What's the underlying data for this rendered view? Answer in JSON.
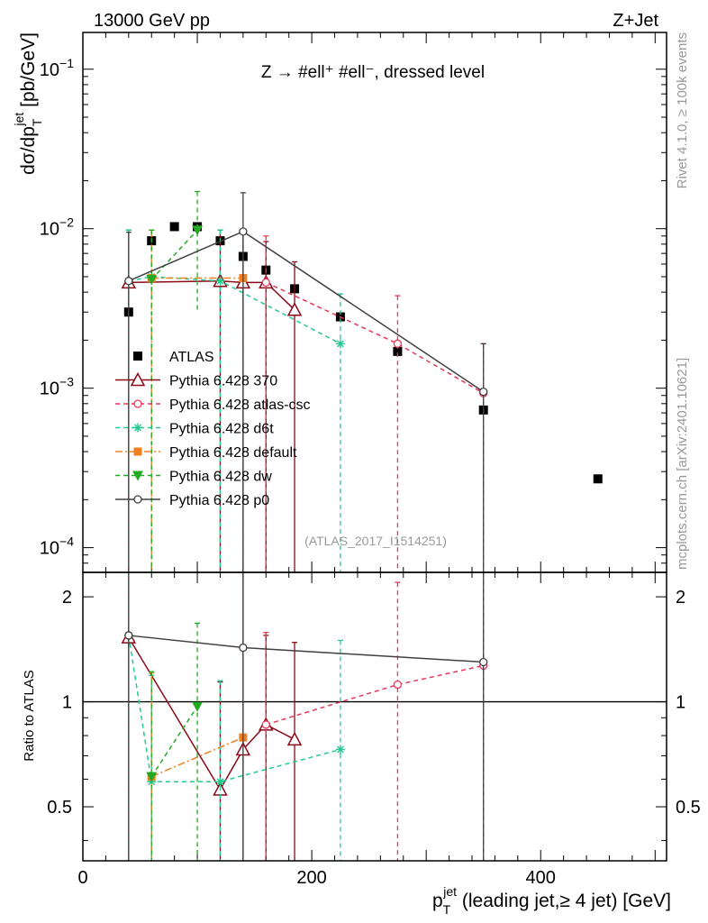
{
  "header": {
    "left": "13000 GeV pp",
    "right": "Z+Jet"
  },
  "annotation": "Z → #ell⁺ #ell⁻, dressed level",
  "analysis_id": "(ATLAS_2017_I1514251)",
  "side_labels": {
    "rivet": "Rivet 4.1.0, ≥ 100k events",
    "mcplots": "mcplots.cern.ch [arXiv:2401.10621]"
  },
  "colors": {
    "ATLAS": "#000000",
    "370": "#8b0a1a",
    "atlas-csc": "#e8365a",
    "d6t": "#22c990",
    "default": "#f08020",
    "dw": "#22aa22",
    "p0": "#404040"
  },
  "chart_data": {
    "type": "line",
    "title": "Z → #ell⁺ #ell⁻, dressed level",
    "xlabel": {
      "main": "p",
      "sub": "T",
      "sup": "jet",
      "rest": " (leading jet,≥ 4 jet) [GeV]"
    },
    "ylabel": {
      "pre": "dσ/dp",
      "sub": "T",
      "sup": "jet",
      "post": " [pb/GeV]"
    },
    "ratio_ylabel": "Ratio to ATLAS",
    "xlim": [
      0,
      510
    ],
    "ylim": [
      7e-05,
      0.17
    ],
    "ratio_ylim": [
      0.35,
      2.35
    ],
    "x_ticks": [
      {
        "v": 0,
        "label": "0"
      },
      {
        "v": 200,
        "label": "200"
      },
      {
        "v": 400,
        "label": "400"
      }
    ],
    "y_ticks": [
      {
        "exp": -4,
        "base": "10",
        "sup": "−4"
      },
      {
        "exp": -3,
        "base": "10",
        "sup": "−3"
      },
      {
        "exp": -2,
        "base": "10",
        "sup": "−2"
      },
      {
        "exp": -1,
        "base": "10",
        "sup": "−1"
      }
    ],
    "ratio_ticks": [
      {
        "v": 0.5,
        "label": "0.5"
      },
      {
        "v": 1,
        "label": "1"
      },
      {
        "v": 2,
        "label": "2"
      }
    ],
    "legend": [
      {
        "key": "ATLAS",
        "label": "ATLAS"
      },
      {
        "key": "370",
        "label": "Pythia 6.428 370"
      },
      {
        "key": "atlas-csc",
        "label": "Pythia 6.428 atlas-csc"
      },
      {
        "key": "d6t",
        "label": "Pythia 6.428 d6t"
      },
      {
        "key": "default",
        "label": "Pythia 6.428 default"
      },
      {
        "key": "dw",
        "label": "Pythia 6.428 dw"
      },
      {
        "key": "p0",
        "label": "Pythia 6.428 p0"
      }
    ],
    "data": {
      "name": "ATLAS",
      "x": [
        40,
        60,
        80,
        100,
        120,
        140,
        160,
        185,
        225,
        275,
        350,
        450
      ],
      "y": [
        0.003,
        0.0084,
        0.0103,
        0.0103,
        0.0084,
        0.0067,
        0.0055,
        0.0042,
        0.0028,
        0.0017,
        0.00073,
        0.00027
      ]
    },
    "series": [
      {
        "key": "370",
        "name": "Pythia 6.428 370",
        "marker": "triangle-open",
        "dash": "",
        "x": [
          40,
          120,
          140,
          160,
          185
        ],
        "y": [
          0.0046,
          0.0047,
          0.0046,
          0.0046,
          0.0031
        ],
        "err_hi": [
          0.0098,
          0.0098,
          0.0098,
          0.0083,
          0.0062
        ],
        "err_lo": [
          0,
          0,
          0,
          0,
          0
        ],
        "ratio": [
          1.53,
          0.56,
          0.73,
          0.86,
          0.78
        ],
        "ratio_err_hi": [
          2.35,
          1.14,
          2.35,
          1.55,
          1.48
        ],
        "ratio_err_lo": [
          0.35,
          0.35,
          0.35,
          0.35,
          0.35
        ]
      },
      {
        "key": "atlas-csc",
        "name": "Pythia 6.428 atlas-csc",
        "marker": "circle-open",
        "dash": "5,4",
        "x": [
          160,
          275,
          350
        ],
        "y": [
          0.0046,
          0.0019,
          0.00093
        ],
        "err_hi": [
          0.009,
          0.0038,
          0.0019
        ],
        "err_lo": [
          0,
          0,
          0
        ],
        "ratio": [
          0.86,
          1.12,
          1.27
        ],
        "ratio_err_hi": [
          1.58,
          2.2,
          2.35
        ],
        "ratio_err_lo": [
          0.35,
          0.35,
          0.35
        ]
      },
      {
        "key": "d6t",
        "name": "Pythia 6.428 d6t",
        "marker": "star",
        "dash": "5,4",
        "x": [
          40,
          60,
          120,
          225
        ],
        "y": [
          0.0047,
          0.005,
          0.0047,
          0.0019
        ],
        "err_hi": [
          0.0098,
          0.0098,
          0.0098,
          0.0039
        ],
        "err_lo": [
          0,
          0,
          0,
          0
        ],
        "ratio": [
          1.55,
          0.59,
          0.59,
          0.73
        ],
        "ratio_err_hi": [
          2.35,
          1.19,
          1.15,
          1.5
        ],
        "ratio_err_lo": [
          0.35,
          0.35,
          0.35,
          0.35
        ]
      },
      {
        "key": "default",
        "name": "Pythia 6.428 default",
        "marker": "square",
        "dash": "8,3,2,3",
        "x": [
          60,
          140
        ],
        "y": [
          0.0049,
          0.0049
        ],
        "err_hi": [
          0.0098,
          0.0098
        ],
        "err_lo": [
          0,
          0
        ],
        "ratio": [
          0.61,
          0.79
        ],
        "ratio_err_hi": [
          1.21,
          2.35
        ],
        "ratio_err_lo": [
          0.35,
          0.35
        ]
      },
      {
        "key": "dw",
        "name": "Pythia 6.428 dw",
        "marker": "triangle-down",
        "dash": "5,4",
        "x": [
          60,
          100
        ],
        "y": [
          0.0048,
          0.0098
        ],
        "err_hi": [
          0.0098,
          0.0171
        ],
        "err_lo": [
          0,
          0.003
        ],
        "ratio": [
          0.61,
          0.97
        ],
        "ratio_err_hi": [
          1.22,
          1.68
        ],
        "ratio_err_lo": [
          0.35,
          0.35
        ]
      },
      {
        "key": "p0",
        "name": "Pythia 6.428 p0",
        "marker": "circle-open",
        "dash": "",
        "x": [
          40,
          140,
          350
        ],
        "y": [
          0.0047,
          0.0096,
          0.00095
        ],
        "err_hi": [
          0.0095,
          0.0168,
          0.0019
        ],
        "err_lo": [
          0,
          0,
          0
        ],
        "ratio": [
          1.55,
          1.43,
          1.3
        ],
        "ratio_err_hi": [
          2.35,
          2.35,
          2.35
        ],
        "ratio_err_lo": [
          0.35,
          0.35,
          0.35
        ]
      }
    ]
  }
}
